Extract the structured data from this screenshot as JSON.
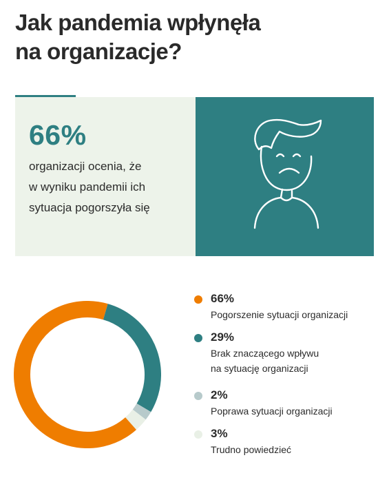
{
  "title": {
    "line1": "Jak pandemia wpłynęła",
    "line2": "na organizacje?"
  },
  "stat": {
    "value": "66%",
    "text_lines": [
      "organizacji ocenia, że",
      "w wyniku pandemii ich",
      "sytuacja pogorszyła się"
    ]
  },
  "icon": {
    "name": "sad-face-icon",
    "panel_color": "#2e7f82"
  },
  "chart_data": {
    "type": "pie",
    "variant": "donut",
    "categories": [
      "Pogorszenie sytuacji organizacji",
      "Brak znaczącego wpływu na sytuację organizacji",
      "Poprawa sytuacji organizacji",
      "Trudno powiedzieć"
    ],
    "values": [
      66,
      29,
      2,
      3
    ],
    "colors": [
      "#ef7d00",
      "#2e7f82",
      "#b7cacb",
      "#e9f0e6"
    ]
  },
  "legend": [
    {
      "value": "66%",
      "label_lines": [
        "Pogorszenie sytuacji organizacji"
      ],
      "color": "#ef7d00"
    },
    {
      "value": "29%",
      "label_lines": [
        "Brak znaczącego wpływu",
        "na sytuację organizacji"
      ],
      "color": "#2e7f82"
    },
    {
      "value": "2%",
      "label_lines": [
        "Poprawa sytuacji organizacji"
      ],
      "color": "#b7cacb"
    },
    {
      "value": "3%",
      "label_lines": [
        "Trudno powiedzieć"
      ],
      "color": "#e9f0e6"
    }
  ]
}
